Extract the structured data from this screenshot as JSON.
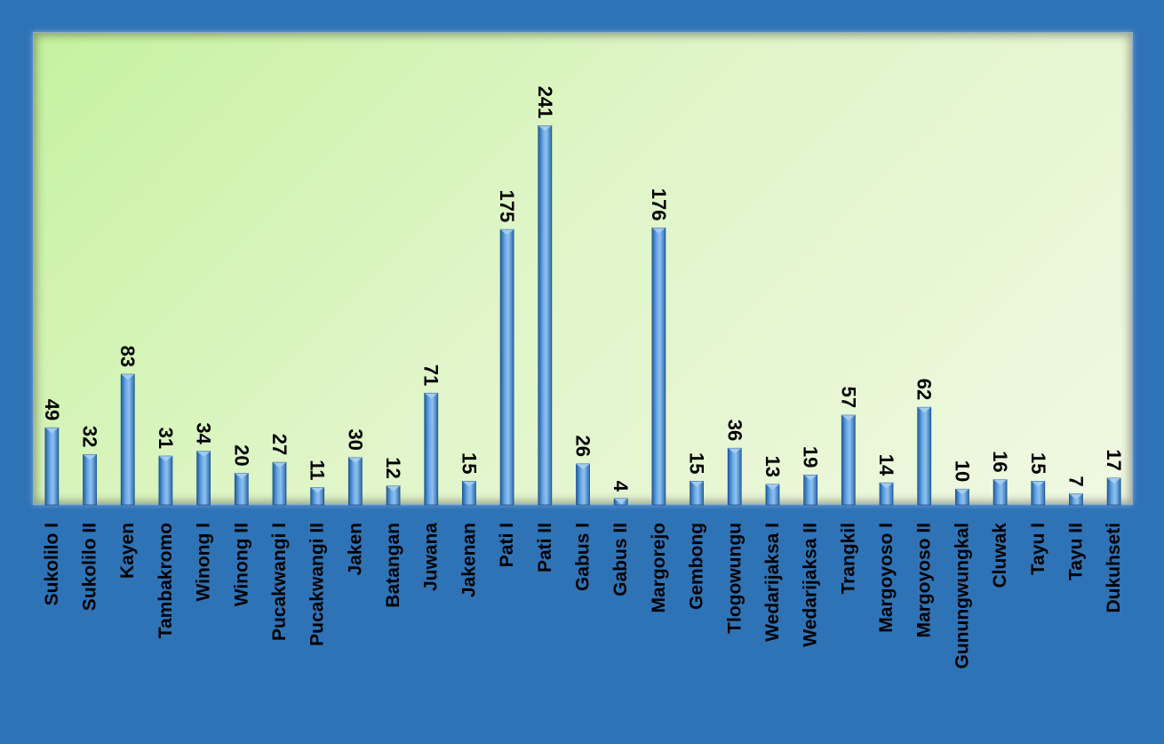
{
  "chart_data": {
    "type": "bar",
    "title": "",
    "xlabel": "",
    "ylabel": "",
    "ylim": [
      0,
      260
    ],
    "grid": false,
    "legend": "none",
    "bar_color": "#4a8fd6",
    "plot_background": "#dff5c7",
    "frame_color": "#2f73b7",
    "categories": [
      "Sukolilo I",
      "Sukolilo II",
      "Kayen",
      "Tambakromo",
      "Winong I",
      "Winong II",
      "Pucakwangi I",
      "Pucakwangi II",
      "Jaken",
      "Batangan",
      "Juwana",
      "Jakenan",
      "Pati I",
      "Pati II",
      "Gabus I",
      "Gabus II",
      "Margorejo",
      "Gembong",
      "Tlogowungu",
      "Wedarijaksa I",
      "Wedarijaksa II",
      "Trangkil",
      "Margoyoso I",
      "Margoyoso II",
      "Gunungwungkal",
      "Cluwak",
      "Tayu I",
      "Tayu II",
      "Dukuhseti"
    ],
    "values": [
      49,
      32,
      83,
      31,
      34,
      20,
      27,
      11,
      30,
      12,
      71,
      15,
      175,
      241,
      26,
      4,
      176,
      15,
      36,
      13,
      19,
      57,
      14,
      62,
      10,
      16,
      15,
      7,
      17
    ],
    "data_labels": [
      "49",
      "32",
      "83",
      "31",
      "34",
      "20",
      "27",
      "11",
      "30",
      "12",
      "71",
      "15",
      "175",
      "241",
      "26",
      "4",
      "176",
      "15",
      "36",
      "13",
      "19",
      "57",
      "14",
      "62",
      "10",
      "16",
      "15",
      "7",
      "17"
    ]
  }
}
